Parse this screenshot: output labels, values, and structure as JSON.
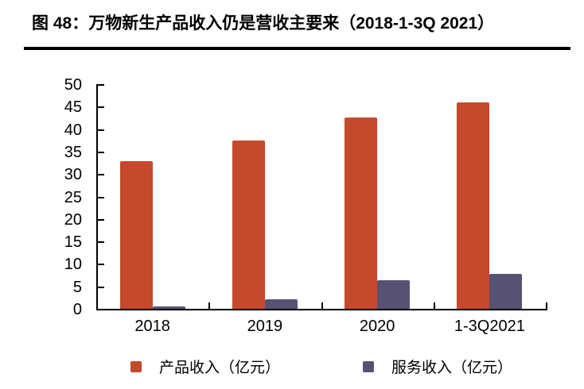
{
  "figure": {
    "title": "图 48：万物新生产品收入仍是营收主要来（2018-1-3Q 2021）"
  },
  "chart_data": {
    "type": "bar",
    "title": "万物新生产品收入仍是营收主要来（2018-1-3Q 2021）",
    "categories": [
      "2018",
      "2019",
      "2020",
      "1-3Q2021"
    ],
    "series": [
      {
        "name": "产品收入（亿元）",
        "color": "#C5492B",
        "values": [
          32.8,
          37.5,
          42.6,
          46.0
        ]
      },
      {
        "name": "服务收入（亿元）",
        "color": "#575273",
        "values": [
          0.5,
          2.2,
          6.3,
          7.8
        ]
      }
    ],
    "ylim": [
      0,
      50
    ],
    "ytick_step": 5,
    "grid": false,
    "legend_position": "bottom",
    "axis_color": "#000000",
    "text_color": "#000000"
  }
}
